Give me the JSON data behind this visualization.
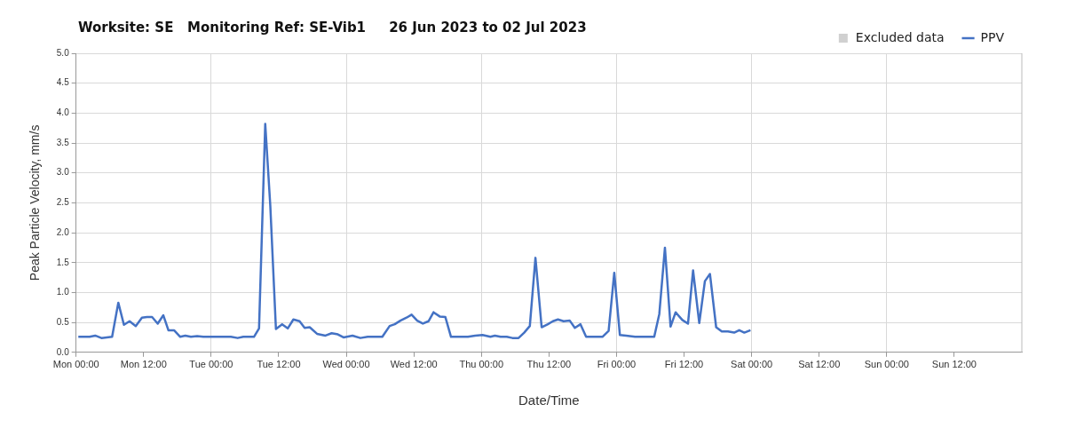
{
  "chart_data": {
    "type": "line",
    "title": "Worksite: SE   Monitoring Ref: SE-Vib1     26 Jun 2023 to 02 Jul 2023",
    "xlabel": "Date/Time",
    "ylabel": "Peak Particle Velocity, mm/s",
    "xlim": [
      "2023-06-26T00:00",
      "2023-07-03T00:00"
    ],
    "xticks": [
      {
        "value": "2023-06-26T00:00",
        "label": "Mon 00:00"
      },
      {
        "value": "2023-06-26T12:00",
        "label": "Mon 12:00"
      },
      {
        "value": "2023-06-27T00:00",
        "label": "Tue 00:00"
      },
      {
        "value": "2023-06-27T12:00",
        "label": "Tue 12:00"
      },
      {
        "value": "2023-06-28T00:00",
        "label": "Wed 00:00"
      },
      {
        "value": "2023-06-28T12:00",
        "label": "Wed 12:00"
      },
      {
        "value": "2023-06-29T00:00",
        "label": "Thu 00:00"
      },
      {
        "value": "2023-06-29T12:00",
        "label": "Thu 12:00"
      },
      {
        "value": "2023-06-30T00:00",
        "label": "Fri 00:00"
      },
      {
        "value": "2023-06-30T12:00",
        "label": "Fri 12:00"
      },
      {
        "value": "2023-07-01T00:00",
        "label": "Sat 00:00"
      },
      {
        "value": "2023-07-01T12:00",
        "label": "Sat 12:00"
      },
      {
        "value": "2023-07-02T00:00",
        "label": "Sun 00:00"
      },
      {
        "value": "2023-07-02T12:00",
        "label": "Sun 12:00"
      }
    ],
    "ylim": [
      0,
      5
    ],
    "yticks": [
      {
        "value": 0,
        "label": "0.0"
      },
      {
        "value": 0.5,
        "label": "0.5"
      },
      {
        "value": 1,
        "label": "1.0"
      },
      {
        "value": 1.5,
        "label": "1.5"
      },
      {
        "value": 2,
        "label": "2.0"
      },
      {
        "value": 2.5,
        "label": "2.5"
      },
      {
        "value": 3,
        "label": "3.0"
      },
      {
        "value": 3.5,
        "label": "3.5"
      },
      {
        "value": 4,
        "label": "4.0"
      },
      {
        "value": 4.5,
        "label": "4.5"
      },
      {
        "value": 5,
        "label": "5.0"
      }
    ],
    "grid": true,
    "legend": "top right",
    "marker": "none",
    "line_style": "solid",
    "series": [
      {
        "name": "Excluded data",
        "type": "bar",
        "color": "#d0d0d0"
      },
      {
        "name": "PPV",
        "color": "#4472c4",
        "x": [
          "2023-06-26T00:24",
          "2023-06-26T02:24",
          "2023-06-26T03:24",
          "2023-06-26T04:30",
          "2023-06-26T06:24",
          "2023-06-26T07:30",
          "2023-06-26T08:30",
          "2023-06-26T09:30",
          "2023-06-26T10:36",
          "2023-06-26T11:42",
          "2023-06-26T12:36",
          "2023-06-26T13:30",
          "2023-06-26T14:30",
          "2023-06-26T15:30",
          "2023-06-26T16:24",
          "2023-06-26T17:24",
          "2023-06-26T18:30",
          "2023-06-26T19:24",
          "2023-06-26T20:24",
          "2023-06-26T21:30",
          "2023-06-26T22:36",
          "2023-06-27T02:00",
          "2023-06-27T03:30",
          "2023-06-27T04:42",
          "2023-06-27T05:42",
          "2023-06-27T07:36",
          "2023-06-27T08:30",
          "2023-06-27T09:36",
          "2023-06-27T10:30",
          "2023-06-27T11:30",
          "2023-06-27T12:36",
          "2023-06-27T13:36",
          "2023-06-27T14:36",
          "2023-06-27T15:42",
          "2023-06-27T16:36",
          "2023-06-27T17:30",
          "2023-06-27T18:48",
          "2023-06-27T20:18",
          "2023-06-27T21:24",
          "2023-06-27T22:30",
          "2023-06-27T23:30",
          "2023-06-28T01:06",
          "2023-06-28T02:30",
          "2023-06-28T03:48",
          "2023-06-28T06:24",
          "2023-06-28T07:42",
          "2023-06-28T08:36",
          "2023-06-28T09:36",
          "2023-06-28T10:42",
          "2023-06-28T11:36",
          "2023-06-28T12:36",
          "2023-06-28T13:36",
          "2023-06-28T14:36",
          "2023-06-28T15:30",
          "2023-06-28T16:36",
          "2023-06-28T17:36",
          "2023-06-28T18:36",
          "2023-06-28T21:36",
          "2023-06-28T22:54",
          "2023-06-29T00:12",
          "2023-06-29T01:36",
          "2023-06-29T02:24",
          "2023-06-29T03:24",
          "2023-06-29T04:30",
          "2023-06-29T05:30",
          "2023-06-29T06:36",
          "2023-06-29T07:36",
          "2023-06-29T08:36",
          "2023-06-29T09:36",
          "2023-06-29T10:42",
          "2023-06-29T11:48",
          "2023-06-29T12:42",
          "2023-06-29T13:36",
          "2023-06-29T14:36",
          "2023-06-29T15:42",
          "2023-06-29T16:36",
          "2023-06-29T17:36",
          "2023-06-29T18:36",
          "2023-06-29T21:30",
          "2023-06-29T22:36",
          "2023-06-29T23:36",
          "2023-06-30T00:36",
          "2023-06-30T01:42",
          "2023-06-30T03:18",
          "2023-06-30T06:42",
          "2023-06-30T07:36",
          "2023-06-30T08:36",
          "2023-06-30T09:36",
          "2023-06-30T10:30",
          "2023-06-30T11:42",
          "2023-06-30T12:42",
          "2023-06-30T13:36",
          "2023-06-30T14:42",
          "2023-06-30T15:42",
          "2023-06-30T16:36",
          "2023-06-30T17:42",
          "2023-06-30T18:42",
          "2023-06-30T19:48",
          "2023-06-30T20:54",
          "2023-06-30T21:48",
          "2023-06-30T22:42",
          "2023-06-30T23:48"
        ],
        "values": [
          0.26,
          0.26,
          0.28,
          0.24,
          0.26,
          0.83,
          0.46,
          0.52,
          0.44,
          0.58,
          0.59,
          0.59,
          0.48,
          0.62,
          0.37,
          0.37,
          0.26,
          0.28,
          0.26,
          0.27,
          0.26,
          0.26,
          0.26,
          0.24,
          0.26,
          0.26,
          0.4,
          3.82,
          2.45,
          0.39,
          0.47,
          0.4,
          0.55,
          0.52,
          0.41,
          0.42,
          0.31,
          0.28,
          0.32,
          0.3,
          0.25,
          0.28,
          0.24,
          0.26,
          0.26,
          0.44,
          0.47,
          0.53,
          0.58,
          0.63,
          0.53,
          0.48,
          0.52,
          0.67,
          0.6,
          0.59,
          0.26,
          0.26,
          0.28,
          0.29,
          0.26,
          0.28,
          0.26,
          0.26,
          0.24,
          0.24,
          0.33,
          0.44,
          1.58,
          0.42,
          0.47,
          0.52,
          0.55,
          0.52,
          0.53,
          0.41,
          0.47,
          0.26,
          0.26,
          0.36,
          1.33,
          0.29,
          0.28,
          0.26,
          0.26,
          0.64,
          1.75,
          0.43,
          0.67,
          0.54,
          0.48,
          1.37,
          0.49,
          1.19,
          1.31,
          0.42,
          0.35,
          0.35,
          0.33,
          0.37,
          0.33,
          0.37
        ]
      }
    ]
  }
}
